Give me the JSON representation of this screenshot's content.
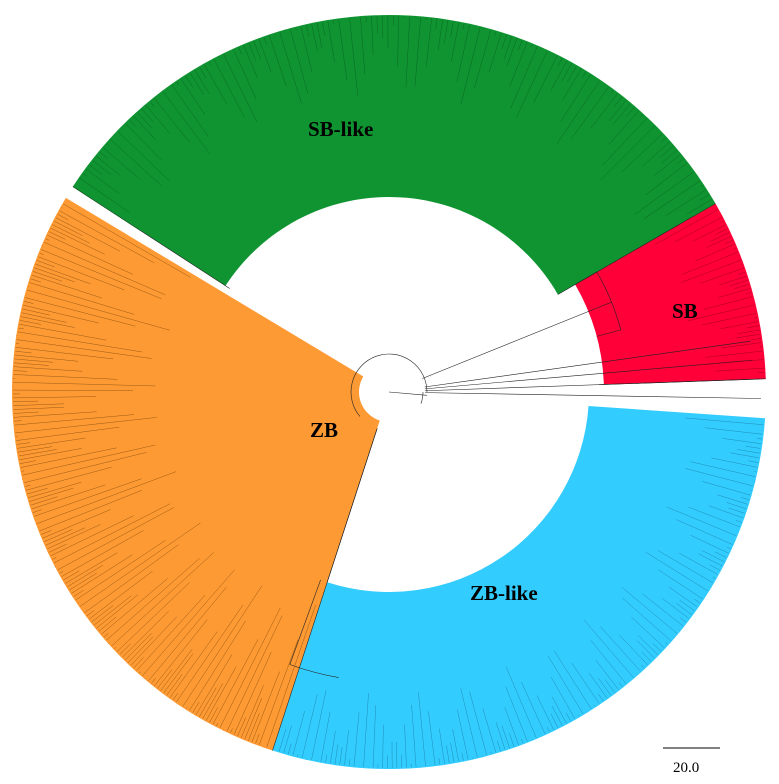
{
  "title": "",
  "clades": [
    {
      "id": "sb-like",
      "label": "SB-like",
      "color": "#0f9431"
    },
    {
      "id": "sb",
      "label": "SB",
      "color": "#ff0038"
    },
    {
      "id": "zb-like",
      "label": "ZB-like",
      "color": "#33ccff"
    },
    {
      "id": "zb",
      "label": "ZB",
      "color": "#fe9a33"
    }
  ],
  "scale_bar": {
    "label": "20.0"
  }
}
